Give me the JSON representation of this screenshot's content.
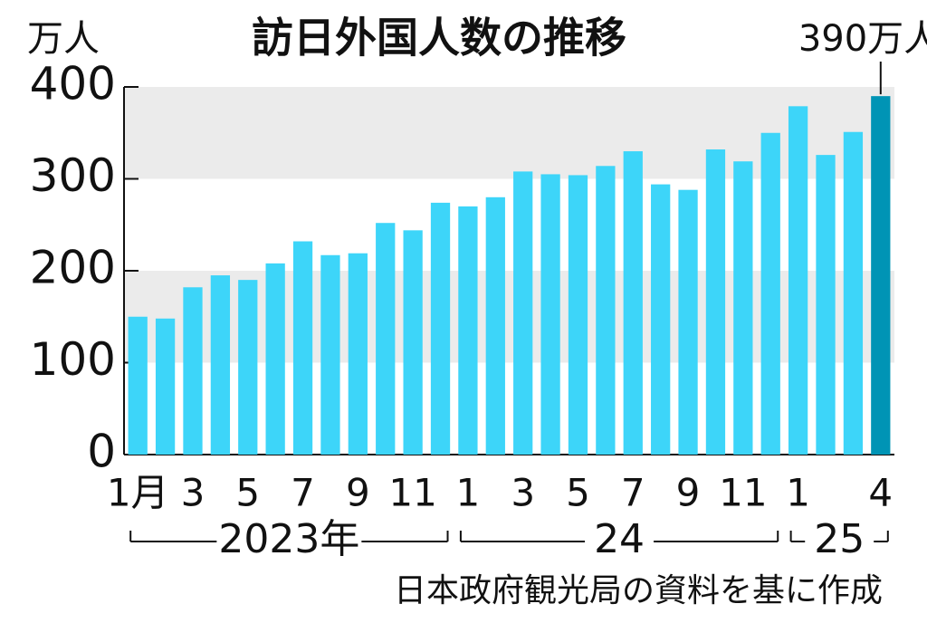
{
  "chart_data": {
    "type": "bar",
    "title": "訪日外国人数の推移",
    "y_unit": "万人",
    "annotation": "390万人",
    "source": "日本政府観光局の資料を基に作成",
    "categories": [
      "1月",
      null,
      "3",
      null,
      "5",
      null,
      "7",
      null,
      "9",
      null,
      "11",
      null,
      "1",
      null,
      "3",
      null,
      "5",
      null,
      "7",
      null,
      "9",
      null,
      "11",
      null,
      "1",
      null,
      null,
      "4"
    ],
    "values": [
      150,
      148,
      182,
      195,
      190,
      208,
      232,
      217,
      219,
      252,
      244,
      274,
      270,
      280,
      308,
      305,
      304,
      314,
      330,
      294,
      288,
      332,
      319,
      350,
      379,
      326,
      351,
      390
    ],
    "colors": [
      "#3dd5f9",
      "#3dd5f9",
      "#3dd5f9",
      "#3dd5f9",
      "#3dd5f9",
      "#3dd5f9",
      "#3dd5f9",
      "#3dd5f9",
      "#3dd5f9",
      "#3dd5f9",
      "#3dd5f9",
      "#3dd5f9",
      "#3dd5f9",
      "#3dd5f9",
      "#3dd5f9",
      "#3dd5f9",
      "#3dd5f9",
      "#3dd5f9",
      "#3dd5f9",
      "#3dd5f9",
      "#3dd5f9",
      "#3dd5f9",
      "#3dd5f9",
      "#3dd5f9",
      "#3dd5f9",
      "#3dd5f9",
      "#3dd5f9",
      "#0094b5"
    ],
    "year_groups": [
      {
        "label": "2023年",
        "count": 12
      },
      {
        "label": "24",
        "count": 12
      },
      {
        "label": "25",
        "count": 4
      }
    ],
    "ylim": [
      0,
      400
    ],
    "yticks": [
      0,
      100,
      200,
      300,
      400
    ],
    "grid": "bands"
  }
}
